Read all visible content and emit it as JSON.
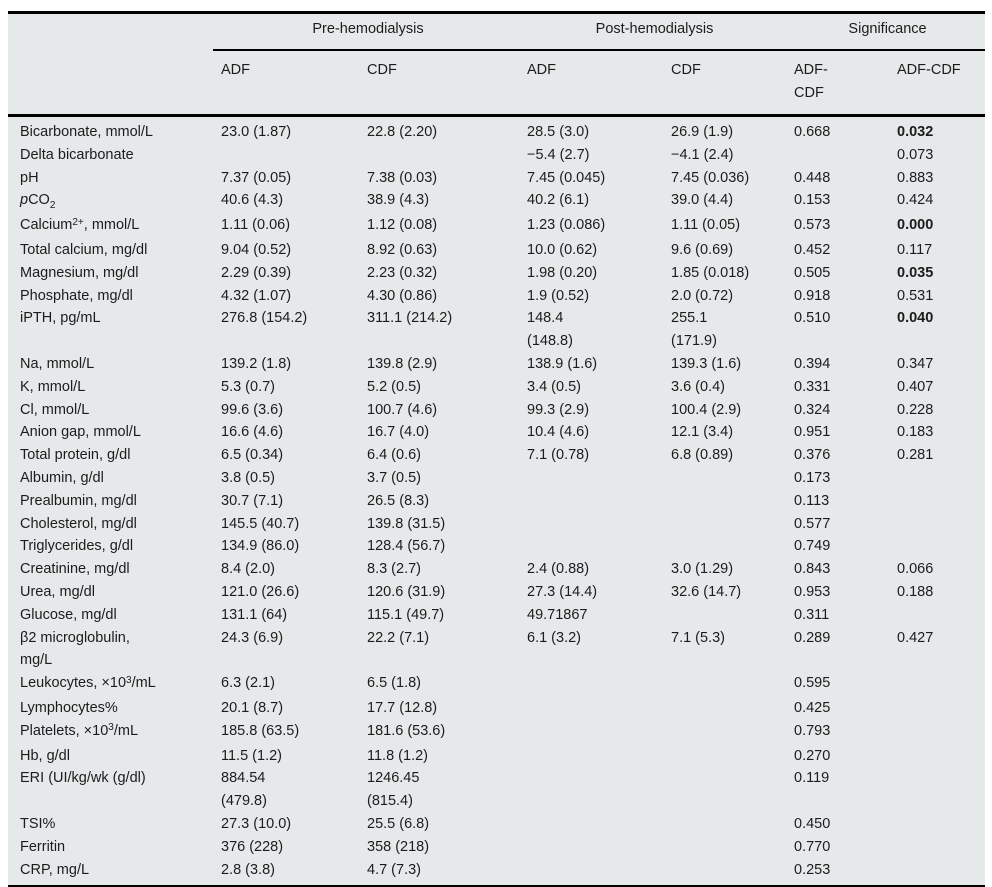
{
  "colors": {
    "table_background": "#e5e9ea",
    "rule": "#000000",
    "text": "#1c1c1c"
  },
  "table": {
    "header": {
      "corner": "",
      "groups": [
        {
          "label": "Pre-hemodialysis",
          "span": 2
        },
        {
          "label": "Post-hemodialysis",
          "span": 2
        },
        {
          "label": "Significance",
          "span": 2
        }
      ],
      "subcols": [
        "ADF",
        "CDF",
        "ADF",
        "CDF",
        "ADF-\nCDF",
        "ADF-CDF"
      ]
    },
    "rows": [
      {
        "label": [
          {
            "t": "Bicarbonate, mmol/L"
          }
        ],
        "cells": [
          "23.0 (1.87)",
          "22.8 (2.20)",
          "28.5 (3.0)",
          "26.9 (1.9)",
          "0.668",
          "0.032"
        ],
        "bold_last": true
      },
      {
        "label": [
          {
            "t": "Delta bicarbonate"
          }
        ],
        "cells": [
          "",
          "",
          "−5.4 (2.7)",
          "−4.1 (2.4)",
          "",
          "0.073"
        ],
        "bold_last": false
      },
      {
        "label": [
          {
            "t": "pH"
          }
        ],
        "cells": [
          "7.37 (0.05)",
          "7.38 (0.03)",
          "7.45 (0.045)",
          "7.45 (0.036)",
          "0.448",
          "0.883"
        ],
        "bold_last": false
      },
      {
        "label": [
          {
            "t": "p",
            "s": "i"
          },
          {
            "t": "CO"
          },
          {
            "t": "2",
            "s": "sub"
          }
        ],
        "cells": [
          "40.6 (4.3)",
          "38.9 (4.3)",
          "40.2 (6.1)",
          "39.0 (4.4)",
          "0.153",
          "0.424"
        ],
        "bold_last": false
      },
      {
        "label": [
          {
            "t": "Calcium"
          },
          {
            "t": "2+",
            "s": "sup"
          },
          {
            "t": ", mmol/L"
          }
        ],
        "cells": [
          "1.11 (0.06)",
          "1.12 (0.08)",
          "1.23 (0.086)",
          "1.11 (0.05)",
          "0.573",
          "0.000"
        ],
        "bold_last": true
      },
      {
        "label": [
          {
            "t": "Total calcium, mg/dl"
          }
        ],
        "cells": [
          "9.04 (0.52)",
          "8.92 (0.63)",
          "10.0 (0.62)",
          "9.6 (0.69)",
          "0.452",
          "0.117"
        ],
        "bold_last": false
      },
      {
        "label": [
          {
            "t": "Magnesium, mg/dl"
          }
        ],
        "cells": [
          "2.29 (0.39)",
          "2.23 (0.32)",
          "1.98 (0.20)",
          "1.85 (0.018)",
          "0.505",
          "0.035"
        ],
        "bold_last": true
      },
      {
        "label": [
          {
            "t": "Phosphate, mg/dl"
          }
        ],
        "cells": [
          "4.32 (1.07)",
          "4.30 (0.86)",
          "1.9 (0.52)",
          "2.0 (0.72)",
          "0.918",
          "0.531"
        ],
        "bold_last": false
      },
      {
        "label": [
          {
            "t": "iPTH, pg/mL"
          }
        ],
        "cells": [
          "276.8 (154.2)",
          "311.1 (214.2)",
          "148.4\n(148.8)",
          "255.1\n(171.9)",
          "0.510",
          "0.040"
        ],
        "bold_last": true
      },
      {
        "label": [
          {
            "t": "Na, mmol/L"
          }
        ],
        "cells": [
          "139.2 (1.8)",
          "139.8 (2.9)",
          "138.9 (1.6)",
          "139.3 (1.6)",
          "0.394",
          "0.347"
        ],
        "bold_last": false
      },
      {
        "label": [
          {
            "t": "K, mmol/L"
          }
        ],
        "cells": [
          "5.3 (0.7)",
          "5.2 (0.5)",
          "3.4 (0.5)",
          "3.6 (0.4)",
          "0.331",
          "0.407"
        ],
        "bold_last": false
      },
      {
        "label": [
          {
            "t": "Cl, mmol/L"
          }
        ],
        "cells": [
          "99.6 (3.6)",
          "100.7 (4.6)",
          "99.3 (2.9)",
          "100.4 (2.9)",
          "0.324",
          "0.228"
        ],
        "bold_last": false
      },
      {
        "label": [
          {
            "t": "Anion gap, mmol/L"
          }
        ],
        "cells": [
          "16.6 (4.6)",
          "16.7 (4.0)",
          "10.4 (4.6)",
          "12.1 (3.4)",
          "0.951",
          "0.183"
        ],
        "bold_last": false
      },
      {
        "label": [
          {
            "t": "Total protein, g/dl"
          }
        ],
        "cells": [
          "6.5 (0.34)",
          "6.4 (0.6)",
          "7.1 (0.78)",
          "6.8 (0.89)",
          "0.376",
          "0.281"
        ],
        "bold_last": false
      },
      {
        "label": [
          {
            "t": "Albumin, g/dl"
          }
        ],
        "cells": [
          "3.8 (0.5)",
          "3.7 (0.5)",
          "",
          "",
          "0.173",
          ""
        ],
        "bold_last": false
      },
      {
        "label": [
          {
            "t": "Prealbumin, mg/dl"
          }
        ],
        "cells": [
          "30.7 (7.1)",
          "26.5 (8.3)",
          "",
          "",
          "0.113",
          ""
        ],
        "bold_last": false
      },
      {
        "label": [
          {
            "t": "Cholesterol, mg/dl"
          }
        ],
        "cells": [
          "145.5 (40.7)",
          "139.8 (31.5)",
          "",
          "",
          "0.577",
          ""
        ],
        "bold_last": false
      },
      {
        "label": [
          {
            "t": "Triglycerides, g/dl"
          }
        ],
        "cells": [
          "134.9 (86.0)",
          "128.4 (56.7)",
          "",
          "",
          "0.749",
          ""
        ],
        "bold_last": false
      },
      {
        "label": [
          {
            "t": "Creatinine, mg/dl"
          }
        ],
        "cells": [
          "8.4 (2.0)",
          "8.3 (2.7)",
          "2.4 (0.88)",
          "3.0 (1.29)",
          "0.843",
          "0.066"
        ],
        "bold_last": false
      },
      {
        "label": [
          {
            "t": "Urea, mg/dl"
          }
        ],
        "cells": [
          "121.0 (26.6)",
          "120.6 (31.9)",
          "27.3 (14.4)",
          "32.6 (14.7)",
          "0.953",
          "0.188"
        ],
        "bold_last": false
      },
      {
        "label": [
          {
            "t": "Glucose, mg/dl"
          }
        ],
        "cells": [
          "131.1 (64)",
          "115.1 (49.7)",
          "49.71867",
          "",
          "0.311",
          ""
        ],
        "bold_last": false
      },
      {
        "label": [
          {
            "t": "β2 microglobulin,\nmg/L"
          }
        ],
        "cells": [
          "24.3 (6.9)",
          "22.2 (7.1)",
          "6.1 (3.2)",
          "7.1 (5.3)",
          "0.289",
          "0.427"
        ],
        "bold_last": false
      },
      {
        "label": [
          {
            "t": "Leukocytes, ×10"
          },
          {
            "t": "3",
            "s": "sup"
          },
          {
            "t": "/mL"
          }
        ],
        "cells": [
          "6.3 (2.1)",
          "6.5 (1.8)",
          "",
          "",
          "0.595",
          ""
        ],
        "bold_last": false
      },
      {
        "label": [
          {
            "t": "Lymphocytes%"
          }
        ],
        "cells": [
          "20.1 (8.7)",
          "17.7 (12.8)",
          "",
          "",
          "0.425",
          ""
        ],
        "bold_last": false
      },
      {
        "label": [
          {
            "t": "Platelets, ×10"
          },
          {
            "t": "3",
            "s": "sup"
          },
          {
            "t": "/mL"
          }
        ],
        "cells": [
          "185.8 (63.5)",
          "181.6 (53.6)",
          "",
          "",
          "0.793",
          ""
        ],
        "bold_last": false
      },
      {
        "label": [
          {
            "t": "Hb, g/dl"
          }
        ],
        "cells": [
          "11.5 (1.2)",
          "11.8 (1.2)",
          "",
          "",
          "0.270",
          ""
        ],
        "bold_last": false
      },
      {
        "label": [
          {
            "t": "ERI (UI/kg/wk (g/dl)"
          }
        ],
        "cells": [
          "884.54\n(479.8)",
          "1246.45\n(815.4)",
          "",
          "",
          "0.119",
          ""
        ],
        "bold_last": false
      },
      {
        "label": [
          {
            "t": "TSI%"
          }
        ],
        "cells": [
          "27.3 (10.0)",
          "25.5 (6.8)",
          "",
          "",
          "0.450",
          ""
        ],
        "bold_last": false
      },
      {
        "label": [
          {
            "t": "Ferritin"
          }
        ],
        "cells": [
          "376 (228)",
          "358 (218)",
          "",
          "",
          "0.770",
          ""
        ],
        "bold_last": false
      },
      {
        "label": [
          {
            "t": "CRP, mg/L"
          }
        ],
        "cells": [
          "2.8 (3.8)",
          "4.7 (7.3)",
          "",
          "",
          "0.253",
          ""
        ],
        "bold_last": false
      }
    ]
  }
}
